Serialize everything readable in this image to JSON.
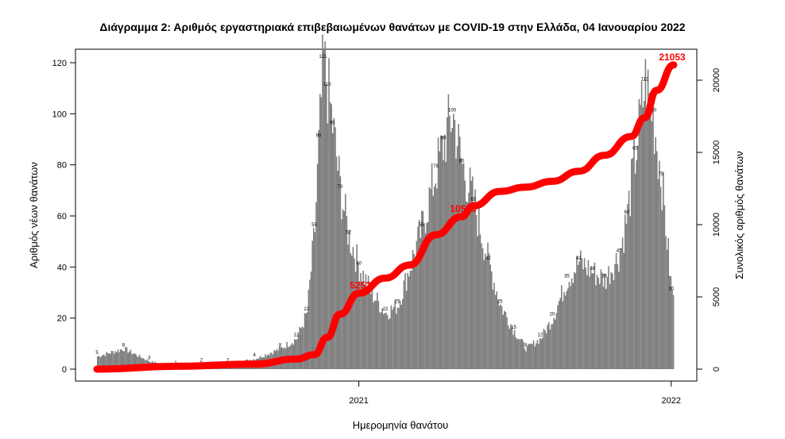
{
  "chart_data": {
    "type": "bar",
    "title": "Διάγραμμα 2: Αριθμός εργαστηριακά επιβεβαιωμένων θανάτων με COVID-19 στην Ελλάδα, 04 Ιανουαρίου 2022",
    "xlabel": "Ημερομηνία θανάτου",
    "ylabel": "Αριθμός νέων θανάτων",
    "y2label": "Συνολικός αριθμός θανάτων",
    "ylim": [
      0,
      120
    ],
    "y2lim": [
      0,
      20000
    ],
    "y_ticks": [
      0,
      20,
      40,
      60,
      80,
      100,
      120
    ],
    "y2_ticks": [
      0,
      5000,
      10000,
      15000,
      20000
    ],
    "x_tick_labels": [
      "2021",
      "2022"
    ],
    "bar_color": "#7f7f7f",
    "line_color": "#ff0000",
    "series": [
      {
        "type": "bar",
        "x": [
          "2020-03",
          "2020-04",
          "2020-05",
          "2020-06",
          "2020-07",
          "2020-08",
          "2020-09",
          "2020-10",
          "2020-10-20",
          "2020-11-01",
          "2020-11-10",
          "2020-11-15",
          "2020-11-20",
          "2020-11-25",
          "2020-12-01",
          "2020-12-10",
          "2020-12-20",
          "2021-01-01",
          "2021-01-15",
          "2021-02-01",
          "2021-02-15",
          "2021-03-01",
          "2021-03-15",
          "2021-04-01",
          "2021-04-10",
          "2021-04-20",
          "2021-05-01",
          "2021-05-15",
          "2021-06-01",
          "2021-06-15",
          "2021-07-01",
          "2021-07-15",
          "2021-08-01",
          "2021-08-15",
          "2021-09-01",
          "2021-09-15",
          "2021-10-01",
          "2021-10-15",
          "2021-11-01",
          "2021-11-10",
          "2021-11-20",
          "2021-12-01",
          "2021-12-10",
          "2021-12-20",
          "2022-01-01"
        ],
        "values": [
          5,
          8,
          3,
          1,
          2,
          2,
          4,
          8,
          12,
          22,
          55,
          90,
          121,
          110,
          95,
          70,
          52,
          40,
          30,
          22,
          25,
          40,
          55,
          78,
          89,
          100,
          80,
          65,
          42,
          25,
          15,
          8,
          12,
          20,
          35,
          42,
          38,
          35,
          45,
          60,
          85,
          112,
          100,
          75,
          30
        ]
      },
      {
        "type": "line",
        "name": "",
        "x": [
          "2020-03",
          "2020-06",
          "2020-09",
          "2020-10-20",
          "2020-11-10",
          "2020-11-25",
          "2020-12-10",
          "2021-01-01",
          "2021-02-01",
          "2021-03-01",
          "2021-04-01",
          "2021-05-01",
          "2021-05-15",
          "2021-06-15",
          "2021-07-15",
          "2021-08-15",
          "2021-09-15",
          "2021-10-15",
          "2021-11-15",
          "2021-12-01",
          "2021-12-15",
          "2022-01-04"
        ],
        "values": [
          0,
          200,
          350,
          700,
          1000,
          2200,
          3800,
          5252,
          6300,
          7200,
          9300,
          10556,
          11300,
          12300,
          12600,
          13000,
          13700,
          14800,
          16100,
          17400,
          19300,
          21053
        ]
      }
    ],
    "annotations": [
      "5252",
      "10556",
      "21053"
    ]
  }
}
